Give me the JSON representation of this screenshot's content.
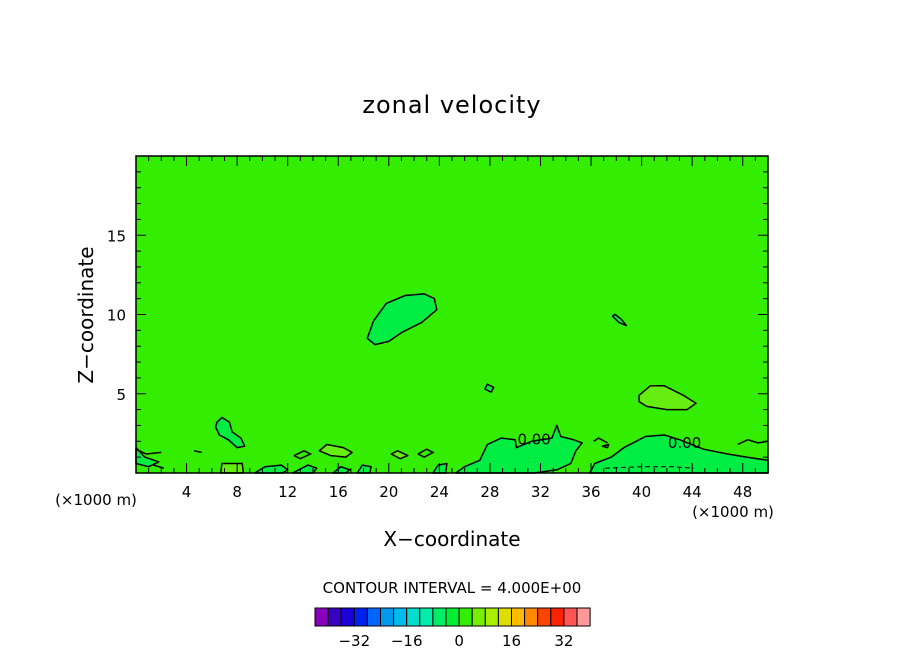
{
  "chart_data": {
    "type": "heatmap",
    "title": "zonal velocity",
    "xlabel": "X−coordinate",
    "ylabel": "Z−coordinate",
    "x_unit_left": "(×1000 m)",
    "x_unit_right": "(×1000 m)",
    "xlim": [
      0,
      50
    ],
    "ylim": [
      0,
      20
    ],
    "x_ticks": [
      4,
      8,
      12,
      16,
      20,
      24,
      28,
      32,
      36,
      40,
      44,
      48
    ],
    "x_tick_labels": [
      "4",
      "8",
      "12",
      "16",
      "20",
      "24",
      "28",
      "32",
      "36",
      "40",
      "44",
      "48"
    ],
    "y_ticks": [
      5,
      10,
      15
    ],
    "y_tick_labels": [
      "5",
      "10",
      "15"
    ],
    "background_level": 2,
    "background_color": "#33ee00",
    "contour_labels": [
      {
        "text": "0.00",
        "x": 31.5,
        "z": 2.1
      },
      {
        "text": "0.00",
        "x": 43.4,
        "z": 1.9
      }
    ],
    "regions": [
      {
        "kind": "negative",
        "fill": "#00ee44",
        "points": [
          [
            18.3,
            8.5
          ],
          [
            18.8,
            9.6
          ],
          [
            19.8,
            10.7
          ],
          [
            21.3,
            11.2
          ],
          [
            22.8,
            11.3
          ],
          [
            23.6,
            11.0
          ],
          [
            23.8,
            10.3
          ],
          [
            22.6,
            9.5
          ],
          [
            21.1,
            8.9
          ],
          [
            20.0,
            8.3
          ],
          [
            18.9,
            8.1
          ]
        ]
      },
      {
        "kind": "positive",
        "fill": "#66ee11",
        "points": [
          [
            39.8,
            4.9
          ],
          [
            40.7,
            5.5
          ],
          [
            41.8,
            5.5
          ],
          [
            43.3,
            4.9
          ],
          [
            44.3,
            4.4
          ],
          [
            43.6,
            4.0
          ],
          [
            42.0,
            4.0
          ],
          [
            40.4,
            4.2
          ],
          [
            39.8,
            4.5
          ]
        ]
      },
      {
        "kind": "negative",
        "fill": "#00ee44",
        "points": [
          [
            37.9,
            10.0
          ],
          [
            38.4,
            9.7
          ],
          [
            38.8,
            9.3
          ],
          [
            38.2,
            9.5
          ],
          [
            37.7,
            9.9
          ]
        ]
      },
      {
        "kind": "negative",
        "fill": "#00ee44",
        "points": [
          [
            27.8,
            5.6
          ],
          [
            28.3,
            5.4
          ],
          [
            28.1,
            5.1
          ],
          [
            27.6,
            5.3
          ]
        ]
      },
      {
        "kind": "negative",
        "fill": "#00ee44",
        "points": [
          [
            6.4,
            3.2
          ],
          [
            6.8,
            3.5
          ],
          [
            7.4,
            3.2
          ],
          [
            7.6,
            2.6
          ],
          [
            8.3,
            2.2
          ],
          [
            8.6,
            1.7
          ],
          [
            8.0,
            1.6
          ],
          [
            7.3,
            2.1
          ],
          [
            6.6,
            2.4
          ],
          [
            6.3,
            2.9
          ]
        ]
      },
      {
        "kind": "positive",
        "fill": "#66ee11",
        "points": [
          [
            14.5,
            1.4
          ],
          [
            15.1,
            1.8
          ],
          [
            16.4,
            1.6
          ],
          [
            17.1,
            1.3
          ],
          [
            16.6,
            1.0
          ],
          [
            15.4,
            1.1
          ]
        ]
      },
      {
        "kind": "positive",
        "fill": "#66ee11",
        "points": [
          [
            20.2,
            1.2
          ],
          [
            20.7,
            1.4
          ],
          [
            21.5,
            1.1
          ],
          [
            20.9,
            0.9
          ]
        ]
      },
      {
        "kind": "positive",
        "fill": "#66ee11",
        "points": [
          [
            6.7,
            0.0
          ],
          [
            6.8,
            0.6
          ],
          [
            8.4,
            0.6
          ],
          [
            8.5,
            0.0
          ]
        ]
      },
      {
        "kind": "negative",
        "fill": "#00ee44",
        "points": [
          [
            25.3,
            0.0
          ],
          [
            26.0,
            0.4
          ],
          [
            27.2,
            0.8
          ],
          [
            27.8,
            1.8
          ],
          [
            28.9,
            2.2
          ],
          [
            30.0,
            2.1
          ],
          [
            30.1,
            1.6
          ],
          [
            31.3,
            2.0
          ],
          [
            32.9,
            2.2
          ],
          [
            33.3,
            3.0
          ],
          [
            33.6,
            2.3
          ],
          [
            34.6,
            2.1
          ],
          [
            35.3,
            1.9
          ],
          [
            34.8,
            1.4
          ],
          [
            34.4,
            0.6
          ],
          [
            33.3,
            0.2
          ],
          [
            31.5,
            0.0
          ]
        ]
      },
      {
        "kind": "negative",
        "fill": "#00ee44",
        "points": [
          [
            35.9,
            0.0
          ],
          [
            36.3,
            0.6
          ],
          [
            37.6,
            1.0
          ],
          [
            38.6,
            1.6
          ],
          [
            40.3,
            2.3
          ],
          [
            41.8,
            2.4
          ],
          [
            43.0,
            2.1
          ],
          [
            44.9,
            1.5
          ],
          [
            46.8,
            1.2
          ],
          [
            48.3,
            1.0
          ],
          [
            50.0,
            0.8
          ],
          [
            50.0,
            0.0
          ]
        ]
      },
      {
        "kind": "negative",
        "fill": "#00ee44",
        "points": [
          [
            0.0,
            1.6
          ],
          [
            0.7,
            1.0
          ],
          [
            1.8,
            0.7
          ],
          [
            1.0,
            0.4
          ],
          [
            0.0,
            0.6
          ]
        ]
      },
      {
        "kind": "negative",
        "fill": "#00ee44",
        "points": [
          [
            9.4,
            0.0
          ],
          [
            10.2,
            0.4
          ],
          [
            11.5,
            0.5
          ],
          [
            12.0,
            0.2
          ],
          [
            11.6,
            0.0
          ]
        ]
      },
      {
        "kind": "negative",
        "fill": "#00ee44",
        "points": [
          [
            12.4,
            0.0
          ],
          [
            13.6,
            0.5
          ],
          [
            14.3,
            0.3
          ],
          [
            14.0,
            0.0
          ]
        ]
      },
      {
        "kind": "negative",
        "fill": "#00ee44",
        "points": [
          [
            15.6,
            0.0
          ],
          [
            16.2,
            0.4
          ],
          [
            16.9,
            0.2
          ],
          [
            16.6,
            0.0
          ]
        ]
      },
      {
        "kind": "negative",
        "fill": "#00ee44",
        "points": [
          [
            17.5,
            0.0
          ],
          [
            17.9,
            0.5
          ],
          [
            18.6,
            0.4
          ],
          [
            18.5,
            0.0
          ]
        ]
      },
      {
        "kind": "negative",
        "fill": "#00ee44",
        "points": [
          [
            23.5,
            0.0
          ],
          [
            23.9,
            0.5
          ],
          [
            24.6,
            0.6
          ],
          [
            24.5,
            0.0
          ]
        ]
      },
      {
        "kind": "negative",
        "fill": "#00ee44",
        "points": [
          [
            36.9,
            1.7
          ],
          [
            37.4,
            1.8
          ],
          [
            37.3,
            1.6
          ]
        ]
      }
    ],
    "contour_lines": [
      [
        [
          0.0,
          1.5
        ],
        [
          0.8,
          1.2
        ],
        [
          2.0,
          1.3
        ]
      ],
      [
        [
          1.4,
          0.5
        ],
        [
          2.2,
          0.3
        ]
      ],
      [
        [
          12.5,
          1.1
        ],
        [
          13.3,
          1.4
        ],
        [
          13.8,
          1.2
        ],
        [
          13.0,
          0.9
        ],
        [
          12.5,
          1.1
        ]
      ],
      [
        [
          22.3,
          1.2
        ],
        [
          23.0,
          1.5
        ],
        [
          23.5,
          1.3
        ],
        [
          22.8,
          1.0
        ],
        [
          22.3,
          1.2
        ]
      ],
      [
        [
          4.6,
          1.4
        ],
        [
          5.2,
          1.3
        ]
      ],
      [
        [
          36.2,
          2.0
        ],
        [
          36.6,
          2.2
        ],
        [
          37.3,
          1.9
        ]
      ],
      [
        [
          47.6,
          1.8
        ],
        [
          48.4,
          2.1
        ],
        [
          49.2,
          1.9
        ],
        [
          50.0,
          2.0
        ]
      ]
    ],
    "dashed_lines": [
      [
        [
          37.1,
          0.3
        ],
        [
          40.0,
          0.4
        ],
        [
          42.5,
          0.4
        ],
        [
          44.1,
          0.3
        ]
      ]
    ],
    "colorbar": {
      "title": "CONTOUR INTERVAL = 4.000E+00",
      "tick_values": [
        -32,
        -16,
        0,
        16,
        32
      ],
      "tick_labels": [
        "−32",
        "−16",
        "0",
        "16",
        "32"
      ],
      "levels": [
        -40,
        -36,
        -32,
        -28,
        -24,
        -20,
        -16,
        -12,
        -8,
        -4,
        0,
        4,
        8,
        12,
        16,
        20,
        24,
        28,
        32,
        36
      ],
      "colors": [
        "#8800bb",
        "#3a00c0",
        "#1c00d8",
        "#0022ee",
        "#0066ff",
        "#0099ee",
        "#00bbee",
        "#00ddcc",
        "#00eeaa",
        "#00ee66",
        "#00ee33",
        "#33ee00",
        "#77ee00",
        "#aaee00",
        "#dddd00",
        "#ffbb00",
        "#ff8800",
        "#ff4400",
        "#ff2200",
        "#ff5555",
        "#ff9999"
      ]
    },
    "grid": false,
    "legend": "bottom"
  }
}
